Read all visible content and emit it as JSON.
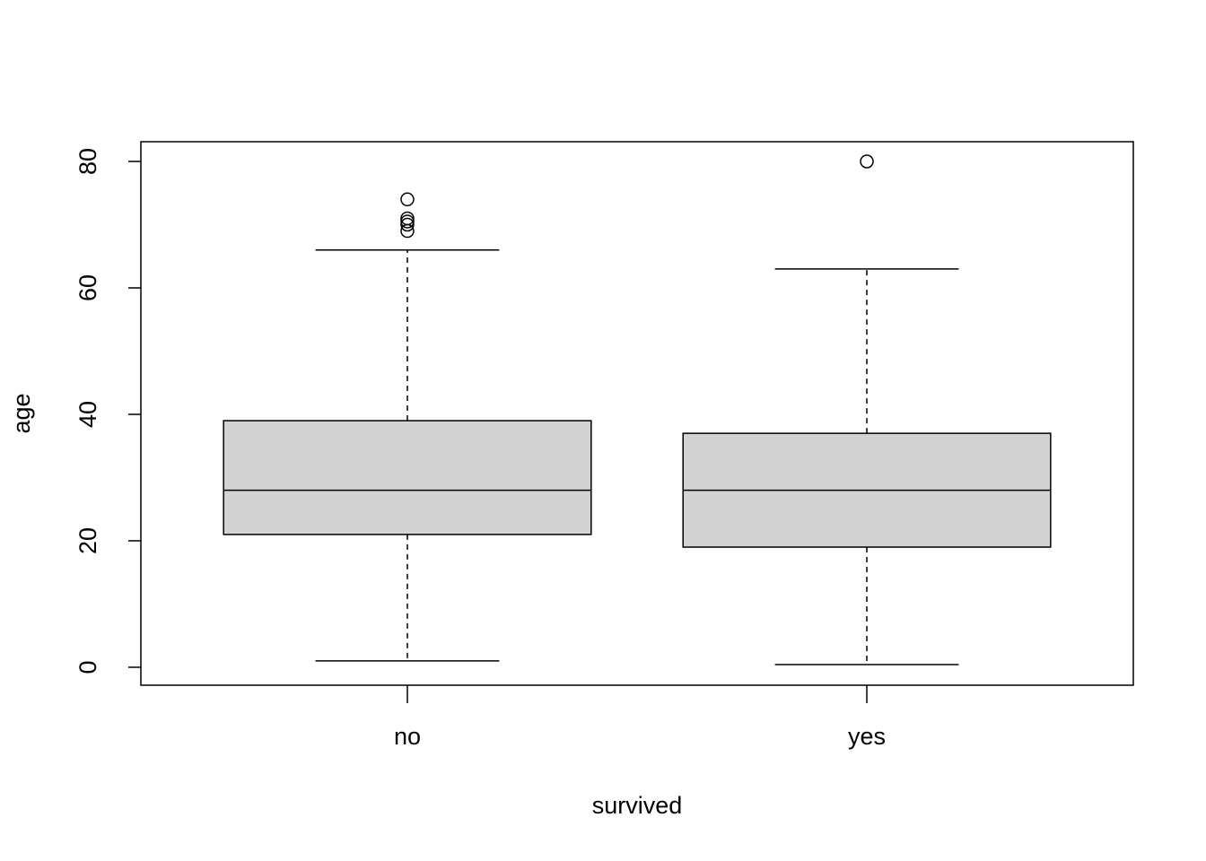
{
  "chart_data": {
    "type": "box",
    "x_label": "survived",
    "y_label": "age",
    "categories": [
      "no",
      "yes"
    ],
    "boxes": [
      {
        "whislo": 1,
        "q1": 21,
        "med": 28,
        "q3": 39,
        "whishi": 66,
        "fliers": [
          74,
          71,
          70.5,
          70,
          69
        ]
      },
      {
        "whislo": 0.42,
        "q1": 19,
        "med": 28,
        "q3": 37,
        "whishi": 63,
        "fliers": [
          80
        ]
      }
    ],
    "color": "#d3d3d3",
    "ylim": [
      -2.84,
      83.12
    ],
    "yticks": [
      0,
      20,
      40,
      60,
      80
    ]
  }
}
